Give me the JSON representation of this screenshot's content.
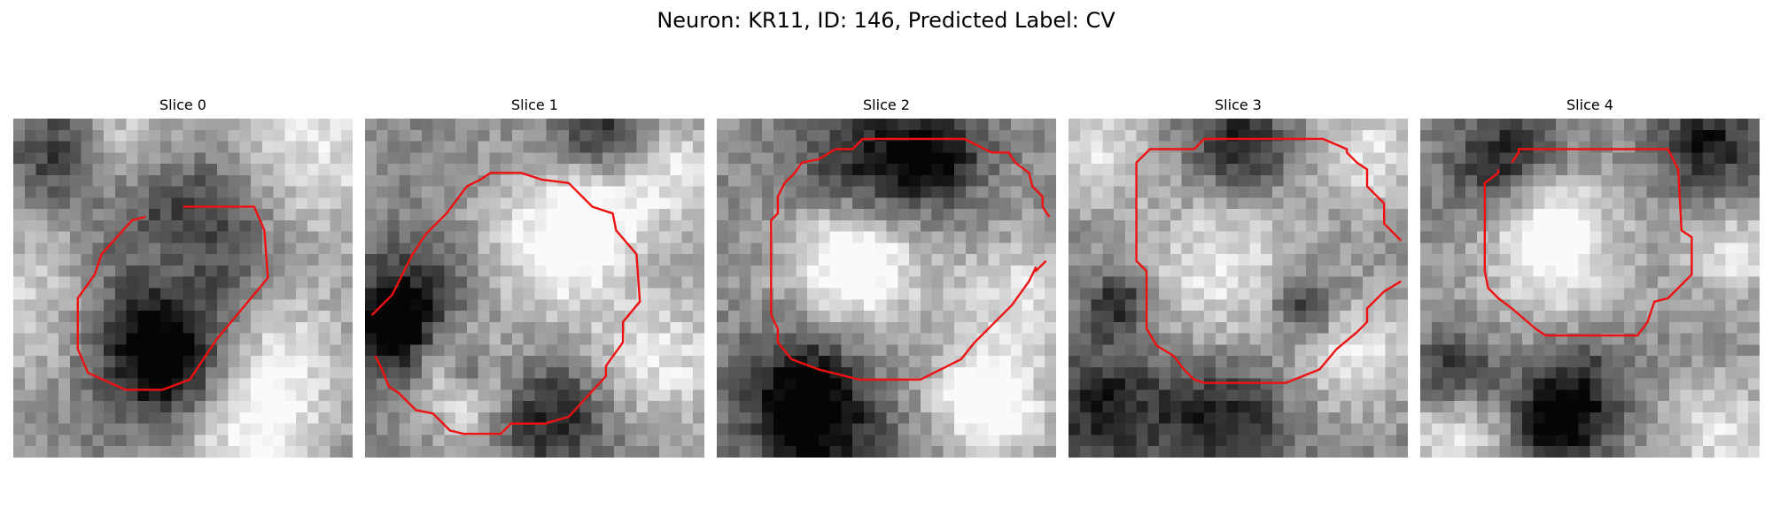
{
  "figure": {
    "title": "Neuron: KR11, ID: 146, Predicted Label: CV"
  },
  "colors": {
    "background": "#ffffff",
    "contour": "#ee1111"
  },
  "panels": [
    {
      "title": "Slice 0",
      "seed": 11,
      "bright": [
        [
          0.9,
          0.05,
          0.22
        ],
        [
          0.3,
          0.08,
          0.12
        ],
        [
          0.78,
          0.72,
          0.16
        ],
        [
          0.45,
          0.42,
          0.1
        ],
        [
          0.1,
          0.55,
          0.18
        ],
        [
          0.7,
          0.95,
          0.14
        ]
      ],
      "dark": [
        [
          0.5,
          0.32,
          0.16
        ],
        [
          0.38,
          0.62,
          0.18
        ],
        [
          0.46,
          0.72,
          0.1
        ],
        [
          0.15,
          0.1,
          0.1
        ]
      ],
      "contours": [
        [
          [
            0.5,
            0.26
          ],
          [
            0.71,
            0.26
          ],
          [
            0.74,
            0.33
          ],
          [
            0.75,
            0.47
          ],
          [
            0.6,
            0.65
          ],
          [
            0.52,
            0.77
          ],
          [
            0.44,
            0.8
          ],
          [
            0.33,
            0.8
          ],
          [
            0.22,
            0.75
          ],
          [
            0.19,
            0.68
          ],
          [
            0.19,
            0.53
          ],
          [
            0.24,
            0.46
          ],
          [
            0.26,
            0.4
          ],
          [
            0.35,
            0.3
          ],
          [
            0.39,
            0.29
          ]
        ]
      ]
    },
    {
      "title": "Slice 1",
      "seed": 23,
      "bright": [
        [
          0.55,
          0.4,
          0.18
        ],
        [
          0.65,
          0.28,
          0.12
        ],
        [
          0.25,
          0.68,
          0.08
        ],
        [
          0.3,
          0.82,
          0.1
        ],
        [
          0.88,
          0.72,
          0.14
        ],
        [
          0.9,
          0.15,
          0.12
        ]
      ],
      "dark": [
        [
          0.15,
          0.55,
          0.14
        ],
        [
          0.08,
          0.63,
          0.08
        ],
        [
          0.3,
          0.74,
          0.05
        ],
        [
          0.55,
          0.88,
          0.12
        ],
        [
          0.7,
          0.05,
          0.1
        ]
      ],
      "contours": [
        [
          [
            0.02,
            0.58
          ],
          [
            0.08,
            0.52
          ],
          [
            0.12,
            0.44
          ],
          [
            0.14,
            0.4
          ],
          [
            0.18,
            0.34
          ],
          [
            0.24,
            0.28
          ],
          [
            0.3,
            0.2
          ],
          [
            0.34,
            0.18
          ],
          [
            0.37,
            0.16
          ],
          [
            0.46,
            0.16
          ],
          [
            0.52,
            0.18
          ],
          [
            0.6,
            0.19
          ],
          [
            0.67,
            0.26
          ],
          [
            0.73,
            0.28
          ],
          [
            0.74,
            0.33
          ],
          [
            0.8,
            0.4
          ],
          [
            0.81,
            0.54
          ],
          [
            0.76,
            0.6
          ],
          [
            0.76,
            0.66
          ],
          [
            0.71,
            0.73
          ],
          [
            0.71,
            0.76
          ],
          [
            0.6,
            0.88
          ],
          [
            0.53,
            0.9
          ],
          [
            0.43,
            0.9
          ],
          [
            0.4,
            0.93
          ],
          [
            0.29,
            0.93
          ],
          [
            0.25,
            0.92
          ],
          [
            0.2,
            0.87
          ],
          [
            0.15,
            0.86
          ],
          [
            0.1,
            0.81
          ],
          [
            0.07,
            0.79
          ],
          [
            0.05,
            0.74
          ],
          [
            0.03,
            0.7
          ]
        ]
      ]
    },
    {
      "title": "Slice 2",
      "seed": 37,
      "bright": [
        [
          0.42,
          0.44,
          0.16
        ],
        [
          0.4,
          0.4,
          0.1
        ],
        [
          0.9,
          0.55,
          0.14
        ],
        [
          0.75,
          0.82,
          0.1
        ],
        [
          0.85,
          0.88,
          0.1
        ]
      ],
      "dark": [
        [
          0.45,
          0.15,
          0.14
        ],
        [
          0.25,
          0.78,
          0.12
        ],
        [
          0.3,
          0.95,
          0.14
        ],
        [
          0.65,
          0.1,
          0.1
        ]
      ],
      "contours": [
        [
          [
            0.98,
            0.29
          ],
          [
            0.96,
            0.26
          ],
          [
            0.96,
            0.23
          ],
          [
            0.93,
            0.2
          ],
          [
            0.92,
            0.16
          ],
          [
            0.88,
            0.13
          ],
          [
            0.86,
            0.1
          ],
          [
            0.81,
            0.1
          ],
          [
            0.73,
            0.06
          ],
          [
            0.43,
            0.06
          ],
          [
            0.4,
            0.09
          ],
          [
            0.35,
            0.09
          ],
          [
            0.3,
            0.12
          ],
          [
            0.25,
            0.13
          ],
          [
            0.23,
            0.16
          ],
          [
            0.2,
            0.19
          ],
          [
            0.18,
            0.23
          ],
          [
            0.18,
            0.28
          ],
          [
            0.16,
            0.3
          ],
          [
            0.16,
            0.58
          ],
          [
            0.18,
            0.62
          ],
          [
            0.18,
            0.66
          ],
          [
            0.22,
            0.71
          ],
          [
            0.3,
            0.74
          ],
          [
            0.42,
            0.77
          ],
          [
            0.6,
            0.77
          ],
          [
            0.66,
            0.74
          ],
          [
            0.72,
            0.71
          ],
          [
            0.76,
            0.66
          ],
          [
            0.82,
            0.6
          ],
          [
            0.87,
            0.55
          ],
          [
            0.92,
            0.48
          ],
          [
            0.94,
            0.44
          ],
          [
            0.94,
            0.45
          ],
          [
            0.96,
            0.43
          ],
          [
            0.97,
            0.42
          ]
        ]
      ]
    },
    {
      "title": "Slice 3",
      "seed": 53,
      "bright": [
        [
          0.45,
          0.45,
          0.18
        ],
        [
          0.85,
          0.7,
          0.12
        ],
        [
          0.1,
          0.1,
          0.1
        ],
        [
          0.9,
          0.1,
          0.12
        ]
      ],
      "dark": [
        [
          0.15,
          0.55,
          0.07
        ],
        [
          0.7,
          0.55,
          0.07
        ],
        [
          0.45,
          0.9,
          0.14
        ],
        [
          0.5,
          0.08,
          0.1
        ],
        [
          0.1,
          0.85,
          0.12
        ]
      ],
      "contours": [
        [
          [
            0.98,
            0.36
          ],
          [
            0.93,
            0.31
          ],
          [
            0.93,
            0.25
          ],
          [
            0.88,
            0.2
          ],
          [
            0.88,
            0.15
          ],
          [
            0.85,
            0.13
          ],
          [
            0.82,
            0.1
          ],
          [
            0.82,
            0.09
          ],
          [
            0.75,
            0.06
          ],
          [
            0.4,
            0.06
          ],
          [
            0.37,
            0.09
          ],
          [
            0.24,
            0.09
          ],
          [
            0.2,
            0.13
          ],
          [
            0.2,
            0.42
          ],
          [
            0.23,
            0.45
          ],
          [
            0.23,
            0.62
          ],
          [
            0.26,
            0.67
          ],
          [
            0.31,
            0.7
          ],
          [
            0.34,
            0.74
          ],
          [
            0.37,
            0.77
          ],
          [
            0.4,
            0.78
          ],
          [
            0.64,
            0.78
          ],
          [
            0.74,
            0.74
          ],
          [
            0.79,
            0.68
          ],
          [
            0.85,
            0.63
          ],
          [
            0.88,
            0.6
          ],
          [
            0.88,
            0.56
          ],
          [
            0.93,
            0.51
          ],
          [
            0.98,
            0.48
          ]
        ]
      ]
    },
    {
      "title": "Slice 4",
      "seed": 71,
      "bright": [
        [
          0.4,
          0.42,
          0.16
        ],
        [
          0.38,
          0.3,
          0.1
        ],
        [
          0.92,
          0.4,
          0.1
        ],
        [
          0.88,
          0.92,
          0.12
        ],
        [
          0.1,
          0.92,
          0.1
        ]
      ],
      "dark": [
        [
          0.25,
          0.13,
          0.11
        ],
        [
          0.45,
          0.8,
          0.11
        ],
        [
          0.4,
          0.92,
          0.08
        ],
        [
          0.85,
          0.08,
          0.1
        ],
        [
          0.1,
          0.75,
          0.08
        ]
      ],
      "contours": [
        [
          [
            0.27,
            0.13
          ],
          [
            0.29,
            0.1
          ],
          [
            0.29,
            0.09
          ],
          [
            0.73,
            0.09
          ],
          [
            0.76,
            0.15
          ],
          [
            0.77,
            0.33
          ],
          [
            0.8,
            0.35
          ],
          [
            0.8,
            0.46
          ],
          [
            0.73,
            0.53
          ],
          [
            0.69,
            0.54
          ],
          [
            0.67,
            0.6
          ],
          [
            0.64,
            0.64
          ],
          [
            0.6,
            0.64
          ],
          [
            0.55,
            0.64
          ],
          [
            0.37,
            0.64
          ],
          [
            0.34,
            0.62
          ],
          [
            0.27,
            0.56
          ],
          [
            0.23,
            0.53
          ],
          [
            0.2,
            0.5
          ],
          [
            0.19,
            0.45
          ],
          [
            0.19,
            0.19
          ],
          [
            0.23,
            0.16
          ],
          [
            0.23,
            0.15
          ]
        ]
      ]
    }
  ]
}
